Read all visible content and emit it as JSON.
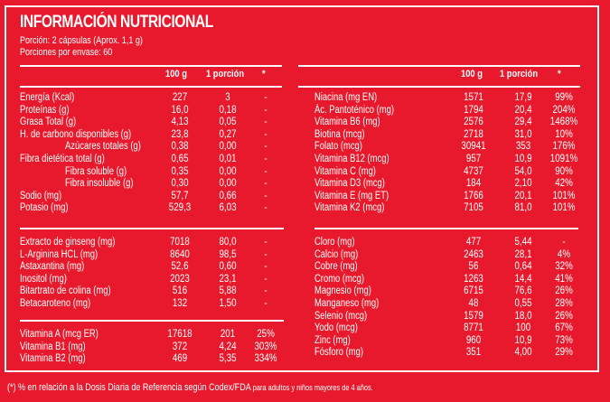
{
  "header": {
    "title": "INFORMACIÓN NUTRICIONAL",
    "portion": "Porción: 2 cápsulas (Aprox. 1,1 g)",
    "servings": "Porciones por envase: 60"
  },
  "columns": {
    "per100": "100 g",
    "perPortion": "1 porción",
    "dv": "*"
  },
  "left": {
    "group1": [
      {
        "label": "Energía (Kcal)",
        "v100": "227",
        "vp": "3",
        "dv": "-",
        "indent": false
      },
      {
        "label": "Proteínas (g)",
        "v100": "16,0",
        "vp": "0,18",
        "dv": "-",
        "indent": false
      },
      {
        "label": "Grasa Total (g)",
        "v100": "4,13",
        "vp": "0,05",
        "dv": "-",
        "indent": false
      },
      {
        "label": "H. de carbono disponibles (g)",
        "v100": "23,8",
        "vp": "0,27",
        "dv": "-",
        "indent": false
      },
      {
        "label": "Azúcares totales (g)",
        "v100": "0,38",
        "vp": "0,00",
        "dv": "-",
        "indent": true
      },
      {
        "label": "Fibra dietética total (g)",
        "v100": "0,65",
        "vp": "0,01",
        "dv": "-",
        "indent": false
      },
      {
        "label": "Fibra soluble (g)",
        "v100": "0,35",
        "vp": "0,00",
        "dv": "-",
        "indent": true
      },
      {
        "label": "Fibra insoluble (g)",
        "v100": "0,30",
        "vp": "0,00",
        "dv": "-",
        "indent": true
      },
      {
        "label": "Sodio (mg)",
        "v100": "57,7",
        "vp": "0,66",
        "dv": "-",
        "indent": false
      },
      {
        "label": "Potasio (mg)",
        "v100": "529,3",
        "vp": "6,03",
        "dv": "-",
        "indent": false
      }
    ],
    "group2": [
      {
        "label": "Extracto de ginseng (mg)",
        "v100": "7018",
        "vp": "80,0",
        "dv": "-"
      },
      {
        "label": "L-Arginina HCL (mg)",
        "v100": "8640",
        "vp": "98,5",
        "dv": "-"
      },
      {
        "label": "Astaxantina (mg)",
        "v100": "52,6",
        "vp": "0,60",
        "dv": "-"
      },
      {
        "label": "Inositol (mg)",
        "v100": "2023",
        "vp": "23,1",
        "dv": "-"
      },
      {
        "label": "Bitartrato de colina (mg)",
        "v100": "516",
        "vp": "5,88",
        "dv": "-"
      },
      {
        "label": "Betacaroteno (mg)",
        "v100": "132",
        "vp": "1,50",
        "dv": "-"
      }
    ],
    "group3": [
      {
        "label": "Vitamina A (mcg ER)",
        "v100": "17618",
        "vp": "201",
        "dv": "25%"
      },
      {
        "label": "Vitamina B1 (mg)",
        "v100": "372",
        "vp": "4,24",
        "dv": "303%"
      },
      {
        "label": "Vitamina B2 (mg)",
        "v100": "469",
        "vp": "5,35",
        "dv": "334%"
      }
    ]
  },
  "right": {
    "group1": [
      {
        "label": "Niacina (mg EN)",
        "v100": "1571",
        "vp": "17,9",
        "dv": "99%"
      },
      {
        "label": "Ác. Pantoténico (mg)",
        "v100": "1794",
        "vp": "20,4",
        "dv": "204%"
      },
      {
        "label": "Vitamina B6 (mg)",
        "v100": "2576",
        "vp": "29,4",
        "dv": "1468%"
      },
      {
        "label": "Biotina (mcg)",
        "v100": "2718",
        "vp": "31,0",
        "dv": "10%"
      },
      {
        "label": "Folato (mcg)",
        "v100": "30941",
        "vp": "353",
        "dv": "176%"
      },
      {
        "label": "Vitamina B12 (mcg)",
        "v100": "957",
        "vp": "10,9",
        "dv": "1091%"
      },
      {
        "label": "Vitamina C (mg)",
        "v100": "4737",
        "vp": "54,0",
        "dv": "90%"
      },
      {
        "label": "Vitamina D3 (mcg)",
        "v100": "184",
        "vp": "2,10",
        "dv": "42%"
      },
      {
        "label": "Vitamina E (mg ET)",
        "v100": "1766",
        "vp": "20,1",
        "dv": "101%"
      },
      {
        "label": "Vitamina K2 (mcg)",
        "v100": "7105",
        "vp": "81,0",
        "dv": "101%"
      }
    ],
    "group2": [
      {
        "label": "Cloro (mg)",
        "v100": "477",
        "vp": "5,44",
        "dv": "-"
      },
      {
        "label": "Calcio (mg)",
        "v100": "2463",
        "vp": "28,1",
        "dv": "4%"
      },
      {
        "label": "Cobre (mg)",
        "v100": "56",
        "vp": "0,64",
        "dv": "32%"
      },
      {
        "label": "Cromo (mcg)",
        "v100": "1263",
        "vp": "14,4",
        "dv": "41%"
      },
      {
        "label": "Magnesio (mg)",
        "v100": "6715",
        "vp": "76,6",
        "dv": "26%"
      },
      {
        "label": "Manganeso (mg)",
        "v100": "48",
        "vp": "0,55",
        "dv": "28%"
      },
      {
        "label": "Selenio (mcg)",
        "v100": "1579",
        "vp": "18,0",
        "dv": "26%"
      },
      {
        "label": "Yodo (mcg)",
        "v100": "8771",
        "vp": "100",
        "dv": "67%"
      },
      {
        "label": "Zinc (mg)",
        "v100": "960",
        "vp": "10,9",
        "dv": "73%"
      },
      {
        "label": "Fósforo (mg)",
        "v100": "351",
        "vp": "4,00",
        "dv": "29%"
      }
    ]
  },
  "footnote": {
    "main": "(*) % en relación a la Dosis Diaria de Referencia según Codex/FDA",
    "small": " para adultos y niños mayores de 4 años."
  },
  "colors": {
    "background": "#e8192c",
    "foreground": "#ffffff"
  }
}
